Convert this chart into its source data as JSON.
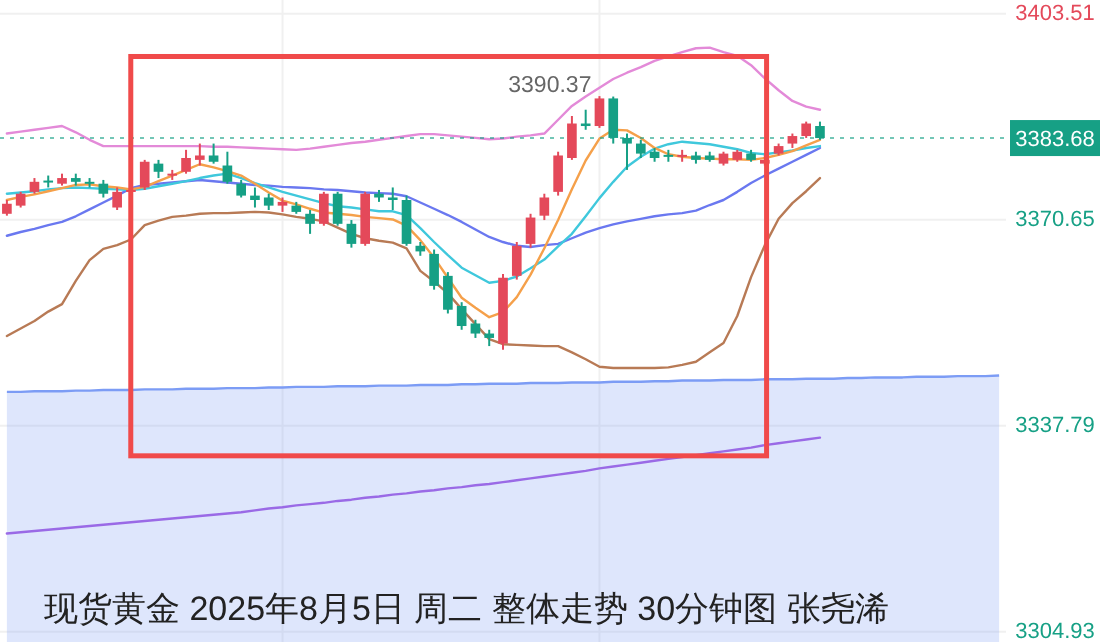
{
  "chart_data": {
    "type": "candlestick",
    "title": "现货黄金 2025年8月5日 周二 整体走势 30分钟图 张尧浠",
    "categories": [
      null,
      null,
      null,
      null,
      null,
      null,
      null,
      null,
      null,
      null,
      null,
      null,
      null,
      null,
      null,
      null,
      null,
      null,
      null,
      null,
      null,
      null,
      null,
      null,
      null,
      null,
      null,
      null,
      null,
      null,
      null,
      null,
      null,
      null,
      null,
      null,
      null,
      null,
      null,
      null,
      null,
      null,
      null,
      null,
      null,
      null,
      null,
      null,
      null,
      null,
      null,
      null,
      null,
      null,
      null,
      null,
      null,
      null,
      null,
      null,
      null,
      null,
      null,
      null,
      null,
      null,
      null,
      null,
      null,
      null,
      null,
      null,
      null
    ],
    "ohlc": [
      [
        3371.6,
        3373.8,
        3371.3,
        3373.2
      ],
      [
        3372.9,
        3375.1,
        3372.6,
        3374.8
      ],
      [
        3375.1,
        3377.3,
        3374.8,
        3376.7
      ],
      [
        3376.9,
        3377.7,
        3375.8,
        3376.6
      ],
      [
        3376.4,
        3378.0,
        3376.1,
        3377.3
      ],
      [
        3377.3,
        3378.0,
        3376.1,
        3376.7
      ],
      [
        3376.7,
        3377.3,
        3375.8,
        3376.4
      ],
      [
        3376.4,
        3377.0,
        3374.2,
        3374.8
      ],
      [
        3372.6,
        3375.8,
        3372.2,
        3375.1
      ],
      [
        3375.1,
        3375.8,
        3374.5,
        3375.4
      ],
      [
        3375.8,
        3380.2,
        3375.4,
        3379.9
      ],
      [
        3379.6,
        3380.2,
        3377.3,
        3378.3
      ],
      [
        3377.7,
        3378.6,
        3377.0,
        3378.0
      ],
      [
        3378.3,
        3381.8,
        3378.0,
        3380.5
      ],
      [
        3380.2,
        3382.8,
        3379.3,
        3380.9
      ],
      [
        3380.9,
        3382.8,
        3379.6,
        3379.9
      ],
      [
        3379.3,
        3381.5,
        3376.4,
        3376.7
      ],
      [
        3376.4,
        3377.0,
        3374.2,
        3374.5
      ],
      [
        3374.5,
        3375.8,
        3372.6,
        3373.8
      ],
      [
        3374.2,
        3374.8,
        3372.2,
        3372.9
      ],
      [
        3372.9,
        3374.2,
        3371.9,
        3373.5
      ],
      [
        3372.9,
        3373.5,
        3371.6,
        3371.9
      ],
      [
        3371.6,
        3372.2,
        3368.4,
        3370.0
      ],
      [
        3370.0,
        3375.1,
        3369.7,
        3374.8
      ],
      [
        3374.8,
        3375.1,
        3369.7,
        3370.0
      ],
      [
        3370.0,
        3370.6,
        3366.2,
        3366.8
      ],
      [
        3366.8,
        3375.1,
        3366.5,
        3374.8
      ],
      [
        3374.8,
        3375.4,
        3373.5,
        3374.2
      ],
      [
        3374.2,
        3375.8,
        3372.2,
        3373.8
      ],
      [
        3373.8,
        3374.5,
        3366.5,
        3366.8
      ],
      [
        3366.5,
        3367.1,
        3364.9,
        3365.6
      ],
      [
        3365.2,
        3365.9,
        3359.5,
        3360.1
      ],
      [
        3361.7,
        3362.3,
        3355.7,
        3356.3
      ],
      [
        3356.9,
        3357.5,
        3353.1,
        3353.7
      ],
      [
        3354.1,
        3354.7,
        3351.8,
        3352.5
      ],
      [
        3352.5,
        3353.1,
        3350.5,
        3351.8
      ],
      [
        3350.9,
        3362.0,
        3349.9,
        3361.4
      ],
      [
        3361.7,
        3367.1,
        3361.1,
        3366.5
      ],
      [
        3366.8,
        3371.6,
        3366.2,
        3371.0
      ],
      [
        3371.3,
        3374.8,
        3370.6,
        3374.2
      ],
      [
        3375.1,
        3381.5,
        3374.5,
        3380.9
      ],
      [
        3380.5,
        3387.2,
        3380.2,
        3386.0
      ],
      [
        3386.0,
        3388.2,
        3385.0,
        3385.6
      ],
      [
        3385.6,
        3390.37,
        3385.3,
        3390.0
      ],
      [
        3390.0,
        3390.3,
        3382.8,
        3383.7
      ],
      [
        3383.7,
        3384.4,
        3378.6,
        3382.8
      ],
      [
        3382.8,
        3383.4,
        3380.5,
        3381.2
      ],
      [
        3381.5,
        3382.1,
        3379.9,
        3380.5
      ],
      [
        3381.0,
        3381.8,
        3379.9,
        3380.7
      ],
      [
        3380.7,
        3381.8,
        3379.9,
        3381.0
      ],
      [
        3380.9,
        3381.5,
        3379.6,
        3380.2
      ],
      [
        3380.9,
        3381.5,
        3379.9,
        3380.2
      ],
      [
        3379.6,
        3381.5,
        3379.3,
        3381.2
      ],
      [
        3380.2,
        3381.8,
        3379.9,
        3381.5
      ],
      [
        3381.2,
        3381.8,
        3379.9,
        3380.2
      ],
      [
        3379.6,
        3380.9,
        3379.3,
        3380.2
      ],
      [
        3381.2,
        3382.8,
        3380.9,
        3382.4
      ],
      [
        3382.8,
        3384.4,
        3382.1,
        3384.0
      ],
      [
        3384.0,
        3386.3,
        3383.7,
        3386.0
      ],
      [
        3385.6,
        3386.3,
        3383.4,
        3383.68
      ],
      null,
      null,
      null,
      null,
      null,
      null,
      null,
      null,
      null,
      null,
      null,
      null,
      null
    ],
    "colors": [
      "#e4495a",
      "#e4495a",
      "#e4495a",
      "#16a085",
      "#e4495a",
      "#16a085",
      "#16a085",
      "#16a085",
      "#e4495a",
      "#e4495a",
      "#e4495a",
      "#16a085",
      "#e4495a",
      "#e4495a",
      "#e4495a",
      "#16a085",
      "#16a085",
      "#16a085",
      "#16a085",
      "#16a085",
      "#e4495a",
      "#16a085",
      "#16a085",
      "#e4495a",
      "#16a085",
      "#16a085",
      "#e4495a",
      "#16a085",
      "#16a085",
      "#16a085",
      "#16a085",
      "#16a085",
      "#16a085",
      "#16a085",
      "#16a085",
      "#16a085",
      "#e4495a",
      "#e4495a",
      "#e4495a",
      "#e4495a",
      "#e4495a",
      "#e4495a",
      "#16a085",
      "#e4495a",
      "#16a085",
      "#16a085",
      "#16a085",
      "#16a085",
      "#16a085",
      "#e4495a",
      "#16a085",
      "#16a085",
      "#e4495a",
      "#e4495a",
      "#16a085",
      "#e4495a",
      "#e4495a",
      "#e4495a",
      "#e4495a",
      "#16a085",
      null,
      null,
      null,
      null,
      null,
      null,
      null,
      null,
      null,
      null,
      null,
      null,
      null
    ],
    "series": [
      {
        "type": "area",
        "color": "#7c9cf5",
        "values": [
          3343.2,
          3343.2,
          3343.3,
          3343.3,
          3343.3,
          3343.4,
          3343.4,
          3343.5,
          3343.5,
          3343.5,
          3343.6,
          3343.6,
          3343.6,
          3343.7,
          3343.7,
          3343.7,
          3343.8,
          3343.8,
          3343.8,
          3343.9,
          3343.9,
          3344.0,
          3344.0,
          3344.0,
          3344.1,
          3344.1,
          3344.1,
          3344.2,
          3344.2,
          3344.2,
          3344.3,
          3344.3,
          3344.3,
          3344.4,
          3344.4,
          3344.5,
          3344.5,
          3344.5,
          3344.6,
          3344.6,
          3344.6,
          3344.7,
          3344.7,
          3344.7,
          3344.8,
          3344.8,
          3344.8,
          3344.9,
          3344.9,
          3345.0,
          3345.0,
          3345.0,
          3345.1,
          3345.1,
          3345.1,
          3345.2,
          3345.2,
          3345.2,
          3345.3,
          3345.3,
          3345.3,
          3345.4,
          3345.4,
          3345.5,
          3345.5,
          3345.5,
          3345.6,
          3345.6,
          3345.6,
          3345.7,
          3345.7,
          3345.7,
          3345.8
        ]
      },
      {
        "type": "line",
        "color": "#9a6ae6",
        "values": [
          3320.6,
          3320.8,
          3321.0,
          3321.2,
          3321.4,
          3321.6,
          3321.8,
          3322.0,
          3322.2,
          3322.4,
          3322.6,
          3322.8,
          3323.0,
          3323.2,
          3323.4,
          3323.6,
          3323.8,
          3324.0,
          3324.3,
          3324.6,
          3324.8,
          3325.1,
          3325.3,
          3325.5,
          3325.8,
          3326.0,
          3326.3,
          3326.5,
          3326.8,
          3327.0,
          3327.3,
          3327.5,
          3327.8,
          3328.0,
          3328.3,
          3328.5,
          3328.8,
          3329.1,
          3329.4,
          3329.7,
          3330.0,
          3330.3,
          3330.6,
          3331.0,
          3331.3,
          3331.6,
          3331.9,
          3332.2,
          3332.5,
          3332.8,
          3333.1,
          3333.4,
          3333.7,
          3334.0,
          3334.3,
          3334.7,
          3335.0,
          3335.3,
          3335.6,
          3335.9,
          null,
          null,
          null,
          null,
          null,
          null,
          null,
          null,
          null,
          null,
          null,
          null,
          null
        ]
      },
      {
        "type": "line",
        "color": "#e38ad8",
        "values": [
          3384.4,
          3384.7,
          3385.0,
          3385.3,
          3385.6,
          3384.6,
          3383.4,
          3382.4,
          3382.4,
          3382.4,
          3382.4,
          3382.4,
          3382.4,
          3382.4,
          3382.4,
          3382.3,
          3382.3,
          3382.2,
          3382.1,
          3382.0,
          3381.9,
          3381.8,
          3382.0,
          3382.3,
          3382.6,
          3382.9,
          3383.1,
          3383.4,
          3383.7,
          3384.0,
          3384.3,
          3384.3,
          3384.1,
          3383.9,
          3383.7,
          3383.5,
          3383.6,
          3383.9,
          3384.1,
          3384.4,
          3386.6,
          3388.8,
          3390.3,
          3391.7,
          3393.1,
          3394.1,
          3395.0,
          3396.0,
          3396.7,
          3397.4,
          3398.0,
          3398.1,
          3397.4,
          3396.8,
          3395.3,
          3393.2,
          3391.3,
          3389.6,
          3388.7,
          3388.2,
          null,
          null,
          null,
          null,
          null,
          null,
          null,
          null,
          null,
          null,
          null,
          null,
          null
        ]
      },
      {
        "type": "line",
        "color": "#b87a55",
        "values": [
          3352.1,
          3353.3,
          3354.5,
          3356.0,
          3357.2,
          3360.9,
          3364.2,
          3366.0,
          3366.6,
          3367.5,
          3369.8,
          3370.5,
          3371.1,
          3371.3,
          3371.6,
          3371.7,
          3371.7,
          3371.8,
          3371.9,
          3371.8,
          3371.5,
          3371.1,
          3370.8,
          3370.4,
          3369.4,
          3368.4,
          3367.7,
          3367.3,
          3367.0,
          3366.1,
          3362.5,
          3360.8,
          3358.9,
          3356.4,
          3354.0,
          3351.6,
          3350.8,
          3350.7,
          3350.6,
          3350.5,
          3350.5,
          3349.5,
          3348.4,
          3347.2,
          3347.0,
          3347.0,
          3347.0,
          3347.0,
          3347.1,
          3347.5,
          3348.0,
          3349.5,
          3351.0,
          3355.3,
          3361.5,
          3366.6,
          3370.8,
          3373.3,
          3375.2,
          3377.3,
          null,
          null,
          null,
          null,
          null,
          null,
          null,
          null,
          null,
          null,
          null,
          null,
          null
        ]
      },
      {
        "type": "line",
        "color": "#6a78f0",
        "values": [
          3368.1,
          3368.7,
          3369.2,
          3369.8,
          3370.3,
          3371.2,
          3372.3,
          3373.4,
          3374.5,
          3375.7,
          3376.2,
          3376.4,
          3376.6,
          3376.8,
          3377.0,
          3376.8,
          3376.6,
          3376.4,
          3376.2,
          3376.1,
          3375.9,
          3375.8,
          3375.7,
          3375.5,
          3375.4,
          3375.2,
          3375.0,
          3374.9,
          3374.8,
          3374.4,
          3373.4,
          3372.4,
          3371.4,
          3370.3,
          3369.1,
          3367.9,
          3367.1,
          3366.5,
          3366.3,
          3366.6,
          3366.8,
          3367.7,
          3368.6,
          3369.3,
          3369.9,
          3370.4,
          3370.8,
          3371.2,
          3371.5,
          3371.7,
          3372.1,
          3373.0,
          3373.8,
          3375.1,
          3376.5,
          3377.7,
          3378.8,
          3379.9,
          3381.0,
          3382.1,
          null,
          null,
          null,
          null,
          null,
          null,
          null,
          null,
          null,
          null,
          null,
          null,
          null
        ]
      },
      {
        "type": "line",
        "color": "#3fc8dc",
        "values": [
          3374.8,
          3375.0,
          3375.2,
          3375.5,
          3375.7,
          3375.8,
          3375.7,
          3375.6,
          3375.5,
          3375.4,
          3375.6,
          3376.0,
          3376.4,
          3376.8,
          3377.3,
          3377.7,
          3378.0,
          3377.3,
          3376.5,
          3375.8,
          3375.1,
          3374.5,
          3373.9,
          3373.3,
          3372.8,
          3372.6,
          3372.3,
          3372.0,
          3372.0,
          3371.4,
          3369.3,
          3367.1,
          3365.0,
          3363.0,
          3361.8,
          3360.6,
          3360.9,
          3361.6,
          3362.9,
          3364.3,
          3366.4,
          3368.4,
          3371.2,
          3374.1,
          3376.7,
          3379.1,
          3380.7,
          3382.0,
          3382.7,
          3383.1,
          3382.9,
          3382.7,
          3382.3,
          3381.9,
          3381.3,
          3381.1,
          3381.4,
          3381.7,
          3382.1,
          3382.4,
          null,
          null,
          null,
          null,
          null,
          null,
          null,
          null,
          null,
          null,
          null,
          null,
          null
        ]
      },
      {
        "type": "line",
        "color": "#f5a04a",
        "values": [
          3373.8,
          3374.3,
          3374.7,
          3375.2,
          3375.7,
          3376.2,
          3376.3,
          3376.0,
          3375.8,
          3375.5,
          3375.9,
          3376.8,
          3377.7,
          3378.6,
          3379.5,
          3379.0,
          3378.4,
          3377.7,
          3376.4,
          3375.0,
          3373.7,
          3373.1,
          3372.4,
          3371.8,
          3371.6,
          3371.4,
          3371.1,
          3370.9,
          3370.7,
          3369.7,
          3367.4,
          3364.6,
          3361.4,
          3358.2,
          3356.6,
          3355.1,
          3355.9,
          3358.3,
          3361.9,
          3366.1,
          3370.6,
          3375.5,
          3380.1,
          3383.6,
          3385.0,
          3384.9,
          3383.7,
          3382.1,
          3381.1,
          3380.7,
          3380.5,
          3380.4,
          3380.3,
          3380.3,
          3380.2,
          3380.5,
          3381.0,
          3381.6,
          3382.5,
          3383.4,
          null,
          null,
          null,
          null,
          null,
          null,
          null,
          null,
          null,
          null,
          null,
          null,
          null
        ]
      }
    ],
    "ylim": [
      3303.3,
      3405.7
    ],
    "yticks": [
      3304.93,
      3337.79,
      3370.65,
      3403.51
    ],
    "tick_labels": "y",
    "grid": true,
    "ref_lines": [
      {
        "axis": "y",
        "value": 3383.68,
        "label": "3383.68",
        "color": "#16a085",
        "line_style": "dotted"
      }
    ],
    "annotations": [
      "3390.37"
    ]
  }
}
